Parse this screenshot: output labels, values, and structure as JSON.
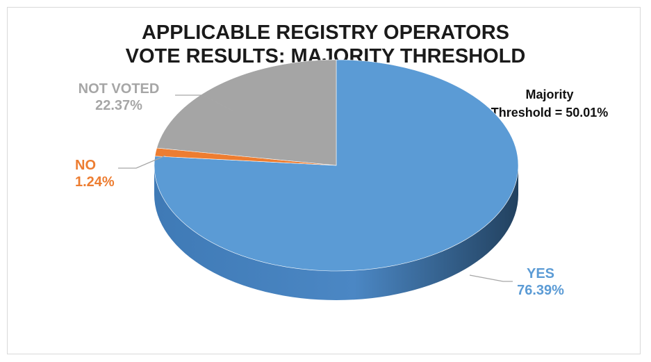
{
  "chart_data": {
    "type": "pie",
    "title_lines": [
      "APPLICABLE REGISTRY OPERATORS",
      "VOTE RESULTS: MAJORITY THRESHOLD"
    ],
    "annotation_lines": [
      "Majority",
      "Threshold = 50.01%"
    ],
    "slices": [
      {
        "name": "YES",
        "value": 76.39,
        "label": "76.39%",
        "color": "#5b9bd5",
        "side_color": "#2e5f8f"
      },
      {
        "name": "NO",
        "value": 1.24,
        "label": "1.24%",
        "color": "#ed7d31",
        "side_color": "#a5521c"
      },
      {
        "name": "NOT VOTED",
        "value": 22.37,
        "label": "22.37%",
        "color": "#a5a5a5",
        "side_color": "#6f6f6f"
      }
    ],
    "style": "3d-pie"
  }
}
